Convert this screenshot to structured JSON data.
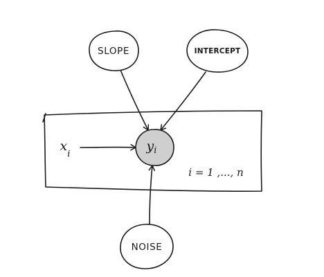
{
  "nodes": {
    "slope": {
      "label": "SLOPE"
    },
    "intercept": {
      "label": "INTERCEPT"
    },
    "noise": {
      "label": "NOISE"
    },
    "y": {
      "label": "y",
      "subscript": "i"
    }
  },
  "input": {
    "label": "x",
    "subscript": "i"
  },
  "plate": {
    "label": "i = 1 ,..., n"
  },
  "colors": {
    "ink": "#1a1a1a",
    "observed_fill": "#cfcfcf",
    "background": "#ffffff"
  }
}
